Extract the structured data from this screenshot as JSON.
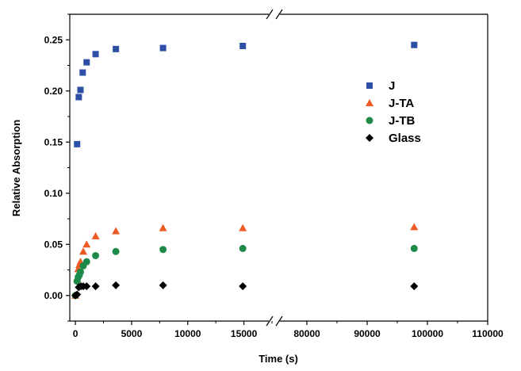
{
  "chart_data": {
    "type": "scatter",
    "xlabel": "Time (s)",
    "ylabel": "Relative Absorption",
    "axis_break": {
      "from": 17500,
      "to": 75000
    },
    "xlim_left": [
      -500,
      17500
    ],
    "xlim_right": [
      75000,
      110000
    ],
    "ylim": [
      -0.025,
      0.275
    ],
    "x_ticks": [
      0,
      5000,
      10000,
      15000,
      80000,
      90000,
      100000,
      110000
    ],
    "x_tick_labels": [
      "0",
      "5000",
      "10000",
      "15000",
      "80000",
      "90000",
      "100000",
      "110000"
    ],
    "y_ticks": [
      0.0,
      0.05,
      0.1,
      0.15,
      0.2,
      0.25
    ],
    "y_tick_labels": [
      "0.00",
      "0.05",
      "0.10",
      "0.15",
      "0.20",
      "0.25"
    ],
    "legend_position": "right",
    "series": [
      {
        "name": "J",
        "marker": "square",
        "color": "#2e4fa6",
        "points": [
          [
            150,
            0.148
          ],
          [
            300,
            0.194
          ],
          [
            450,
            0.201
          ],
          [
            650,
            0.218
          ],
          [
            1000,
            0.228
          ],
          [
            1800,
            0.236
          ],
          [
            3600,
            0.241
          ],
          [
            7800,
            0.242
          ],
          [
            14900,
            0.244
          ],
          [
            97800,
            0.245
          ]
        ]
      },
      {
        "name": "J-TA",
        "marker": "triangle",
        "color": "#ee5a24",
        "points": [
          [
            0,
            0.0
          ],
          [
            150,
            0.016
          ],
          [
            250,
            0.026
          ],
          [
            350,
            0.03
          ],
          [
            450,
            0.033
          ],
          [
            700,
            0.043
          ],
          [
            1000,
            0.05
          ],
          [
            1800,
            0.058
          ],
          [
            3600,
            0.063
          ],
          [
            7800,
            0.066
          ],
          [
            14900,
            0.066
          ],
          [
            97800,
            0.067
          ]
        ]
      },
      {
        "name": "J-TB",
        "marker": "circle",
        "color": "#1d8a4a",
        "points": [
          [
            0,
            0.0
          ],
          [
            150,
            0.014
          ],
          [
            250,
            0.018
          ],
          [
            350,
            0.02
          ],
          [
            450,
            0.023
          ],
          [
            700,
            0.029
          ],
          [
            1000,
            0.033
          ],
          [
            1800,
            0.039
          ],
          [
            3600,
            0.043
          ],
          [
            7800,
            0.045
          ],
          [
            14900,
            0.046
          ],
          [
            97800,
            0.046
          ]
        ]
      },
      {
        "name": "Glass",
        "marker": "diamond",
        "color": "#000000",
        "points": [
          [
            0,
            0.0
          ],
          [
            150,
            0.001
          ],
          [
            300,
            0.008
          ],
          [
            500,
            0.009
          ],
          [
            700,
            0.009
          ],
          [
            1000,
            0.009
          ],
          [
            1800,
            0.009
          ],
          [
            3600,
            0.01
          ],
          [
            7800,
            0.01
          ],
          [
            14900,
            0.009
          ],
          [
            97800,
            0.009
          ]
        ]
      }
    ]
  }
}
